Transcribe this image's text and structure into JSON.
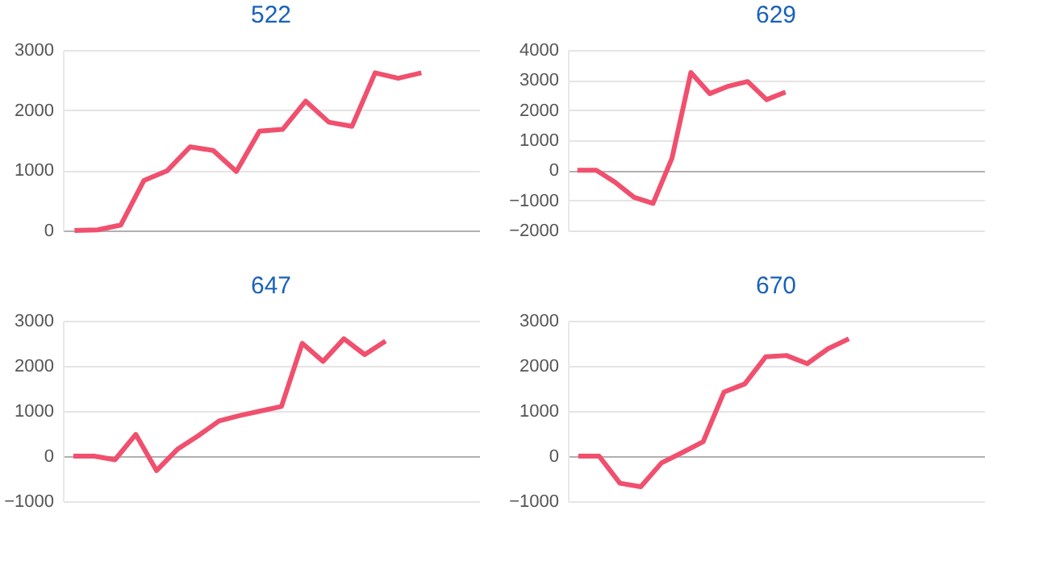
{
  "chart_data": [
    {
      "type": "line",
      "title": "522",
      "categories": [
        null,
        null,
        null,
        null,
        null,
        null,
        null,
        null,
        null,
        null,
        null,
        null,
        null,
        null,
        null,
        null,
        null,
        null
      ],
      "tick_labels": "y",
      "grid": "y",
      "line_style": "solid",
      "marker": "none",
      "ylim": [
        0,
        3000
      ],
      "yticks": [
        0,
        1000,
        2000,
        3000
      ],
      "series": [
        {
          "color": "#f0506e",
          "values": [
            0,
            10,
            90,
            830,
            990,
            1390,
            1330,
            980,
            1650,
            1680,
            2150,
            1800,
            1730,
            2620,
            2530,
            2620,
            null,
            null
          ]
        }
      ]
    },
    {
      "type": "line",
      "title": "629",
      "categories": [
        null,
        null,
        null,
        null,
        null,
        null,
        null,
        null,
        null,
        null,
        null,
        null,
        null,
        null,
        null,
        null,
        null,
        null,
        null,
        null,
        null,
        null
      ],
      "tick_labels": "y",
      "grid": "y",
      "line_style": "solid",
      "marker": "none",
      "ylim": [
        -2000,
        4000
      ],
      "yticks": [
        -2000,
        -1000,
        0,
        1000,
        2000,
        3000,
        4000
      ],
      "series": [
        {
          "color": "#f0506e",
          "values": [
            0,
            0,
            -400,
            -900,
            -1100,
            400,
            3250,
            2550,
            2800,
            2950,
            2350,
            2600,
            null,
            null,
            null,
            null,
            null,
            null,
            null,
            null,
            null,
            null
          ]
        }
      ]
    },
    {
      "type": "line",
      "title": "647",
      "categories": [
        null,
        null,
        null,
        null,
        null,
        null,
        null,
        null,
        null,
        null,
        null,
        null,
        null,
        null,
        null,
        null,
        null,
        null,
        null,
        null
      ],
      "tick_labels": "y",
      "grid": "y",
      "line_style": "solid",
      "marker": "none",
      "ylim": [
        -1000,
        3000
      ],
      "yticks": [
        -1000,
        0,
        1000,
        2000,
        3000
      ],
      "series": [
        {
          "color": "#f0506e",
          "values": [
            0,
            0,
            -80,
            480,
            -320,
            150,
            450,
            780,
            900,
            1000,
            1100,
            2500,
            2100,
            2600,
            2250,
            2550,
            null,
            null,
            null,
            null
          ]
        }
      ]
    },
    {
      "type": "line",
      "title": "670",
      "categories": [
        null,
        null,
        null,
        null,
        null,
        null,
        null,
        null,
        null,
        null,
        null,
        null,
        null,
        null,
        null,
        null,
        null,
        null,
        null,
        null
      ],
      "tick_labels": "y",
      "grid": "y",
      "line_style": "solid",
      "marker": "none",
      "ylim": [
        -1000,
        3000
      ],
      "yticks": [
        -1000,
        0,
        1000,
        2000,
        3000
      ],
      "series": [
        {
          "color": "#f0506e",
          "values": [
            0,
            0,
            -600,
            -680,
            -150,
            80,
            320,
            1420,
            1600,
            2200,
            2230,
            2050,
            2380,
            2600,
            null,
            null,
            null,
            null,
            null,
            null
          ]
        }
      ]
    }
  ]
}
